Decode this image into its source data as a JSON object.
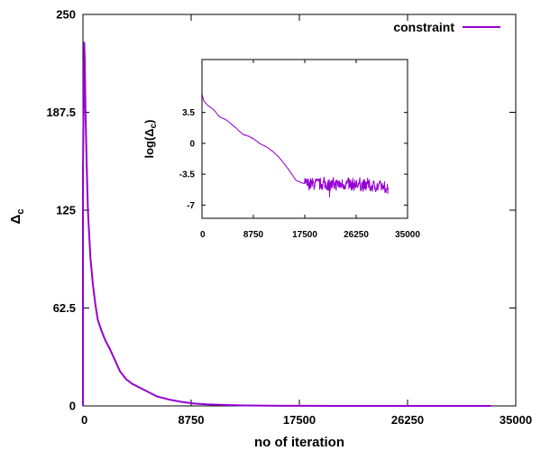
{
  "chart_data": [
    {
      "type": "line",
      "xlabel": "no of iteration",
      "ylabel_main": "Δ",
      "ylabel_sub": "c",
      "xlim": [
        0,
        35000
      ],
      "ylim": [
        0,
        250
      ],
      "xticks": [
        "0",
        "8750",
        "17500",
        "26250",
        "35000"
      ],
      "xtick_values": [
        0,
        8750,
        17500,
        26250,
        35000
      ],
      "yticks": [
        "0",
        "62.5",
        "125",
        "187.5",
        "250"
      ],
      "ytick_values": [
        0,
        62.5,
        125,
        187.5,
        250
      ],
      "legend_position": "top-right",
      "grid": false,
      "series": [
        {
          "name": "constraint",
          "color": "#9400d3",
          "x": [
            0,
            1,
            100,
            150,
            200,
            300,
            400,
            600,
            800,
            1000,
            1200,
            1500,
            1800,
            2200,
            2600,
            3000,
            3500,
            4000,
            4500,
            5000,
            5500,
            6000,
            7000,
            8000,
            9000,
            10000,
            11000,
            12000,
            13000,
            14000,
            16000,
            18000,
            20000,
            25000,
            30000,
            33000
          ],
          "y": [
            0,
            150,
            232,
            220,
            190,
            155,
            125,
            95,
            78,
            65,
            55,
            48,
            42,
            36,
            29,
            22,
            17,
            14,
            12,
            10,
            8,
            6,
            4,
            2.5,
            1.5,
            1,
            0.7,
            0.5,
            0.3,
            0.2,
            0.1,
            0.05,
            0.02,
            0.01,
            0.01,
            0.01
          ]
        }
      ]
    },
    {
      "type": "line",
      "ylabel_main": "log(Δ",
      "ylabel_sub": "c",
      "ylabel_close": ")",
      "xlim": [
        0,
        35000
      ],
      "ylim": [
        -8.5,
        9.5
      ],
      "xticks": [
        "0",
        "8750",
        "17500",
        "26250",
        "35000"
      ],
      "xtick_values": [
        0,
        8750,
        17500,
        26250,
        35000
      ],
      "yticks": [
        "3.5",
        "0",
        "-3.5",
        "-7"
      ],
      "ytick_values": [
        3.5,
        0,
        -3.5,
        -7
      ],
      "grid": false,
      "series": [
        {
          "color": "#9400d3",
          "trend_x": [
            0,
            300,
            1000,
            2000,
            3000,
            4000,
            5000,
            6000,
            7000,
            8000,
            9000,
            10000,
            11000,
            12000,
            13000,
            14000,
            15000,
            16000,
            17000,
            18000,
            19000,
            20000,
            22000,
            25000,
            28000,
            31000,
            31700
          ],
          "trend_y": [
            5.6,
            4.8,
            4.3,
            3.8,
            3.0,
            2.7,
            2.2,
            1.6,
            1.0,
            0.8,
            0.4,
            -0.1,
            -0.4,
            -0.9,
            -1.5,
            -2.3,
            -3.2,
            -4.2,
            -4.5,
            -4.6,
            -4.6,
            -4.6,
            -4.7,
            -4.6,
            -4.8,
            -4.9,
            -5.1
          ],
          "noise_start_x": 17500,
          "noise_amplitude": 0.7
        }
      ]
    }
  ]
}
